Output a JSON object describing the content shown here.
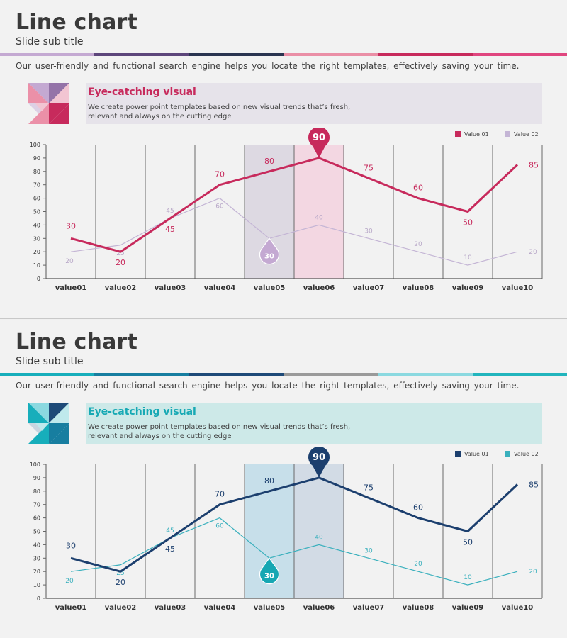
{
  "slides": [
    {
      "title": "Line chart",
      "subtitle": "Slide sub title",
      "description": "Our user-friendly and functional search engine helps you locate the right templates, effectively saving your time.",
      "banner": {
        "heading": "Eye-catching visual",
        "body_line1": "We create power point templates based on new visual trends that’s fresh,",
        "body_line2": "relevant and always on the cutting edge"
      },
      "colors": {
        "stripe": [
          "#c4a9d2",
          "#5d467b",
          "#2a3450",
          "#ea8fa6",
          "#c72a5c",
          "#e0467f"
        ],
        "heading": "#c72a5c",
        "banner_bg": "#e6e3ea",
        "icon": [
          "#eb90a8",
          "#9473a8",
          "#c72a5c",
          "#c4a9d2",
          "#f2c5d2",
          "#ddd0e5"
        ],
        "series1": "#c72a5c",
        "series2": "#c4b5d5",
        "label2": "#b8a8c8",
        "highlight_a": "#ddd9e2",
        "highlight_b": "#f3d7e2",
        "pin": "#c72a5c",
        "drop": "#c4a9d2"
      },
      "chart_data": {
        "type": "line",
        "categories": [
          "value01",
          "value02",
          "value03",
          "value04",
          "value05",
          "value06",
          "value07",
          "value08",
          "value09",
          "value10"
        ],
        "series": [
          {
            "name": "Value 01",
            "values": [
              30,
              20,
              45,
              70,
              80,
              90,
              75,
              60,
              50,
              85
            ]
          },
          {
            "name": "Value 02",
            "values": [
              20,
              25,
              45,
              60,
              30,
              40,
              30,
              20,
              10,
              20
            ]
          }
        ],
        "yticks": [
          "0",
          "10",
          "20",
          "30",
          "40",
          "50",
          "60",
          "70",
          "80",
          "90",
          "100"
        ],
        "ylim": [
          0,
          100
        ],
        "legend_position": "top-right",
        "highlight_categories": [
          "value05",
          "value06"
        ],
        "callout_pin": "90",
        "callout_drop": "30"
      }
    },
    {
      "title": "Line chart",
      "subtitle": "Slide sub title",
      "description": "Our user-friendly and functional search engine helps you locate the right templates, effectively saving your time.",
      "banner": {
        "heading": "Eye-catching visual",
        "body_line1": "We create power point templates based on new visual trends that’s fresh,",
        "body_line2": "relevant and always on the cutting edge"
      },
      "colors": {
        "stripe": [
          "#17aebb",
          "#177ea0",
          "#1e4a78",
          "#9a9a9a",
          "#8bd9e0",
          "#22b5bd"
        ],
        "heading": "#17a9b4",
        "banner_bg": "#cde9e8",
        "icon": [
          "#17aebb",
          "#1e4a78",
          "#177ea0",
          "#8bd9e0",
          "#bfe9ec",
          "#c9d5e0"
        ],
        "series1": "#1c3f6e",
        "series2": "#3ab0bd",
        "label2": "#3ab0bd",
        "highlight_a": "#c7dfea",
        "highlight_b": "#d2dbe5",
        "pin": "#1c3f6e",
        "drop": "#16a7b3"
      },
      "chart_data": {
        "type": "line",
        "categories": [
          "value01",
          "value02",
          "value03",
          "value04",
          "value05",
          "value06",
          "value07",
          "value08",
          "value09",
          "value10"
        ],
        "series": [
          {
            "name": "Value 01",
            "values": [
              30,
              20,
              45,
              70,
              80,
              90,
              75,
              60,
              50,
              85
            ]
          },
          {
            "name": "Value 02",
            "values": [
              20,
              25,
              45,
              60,
              30,
              40,
              30,
              20,
              10,
              20
            ]
          }
        ],
        "yticks": [
          "0",
          "10",
          "20",
          "30",
          "40",
          "50",
          "60",
          "70",
          "80",
          "90",
          "100"
        ],
        "ylim": [
          0,
          100
        ],
        "legend_position": "top-right",
        "highlight_categories": [
          "value05",
          "value06"
        ],
        "callout_pin": "90",
        "callout_drop": "30"
      }
    }
  ]
}
